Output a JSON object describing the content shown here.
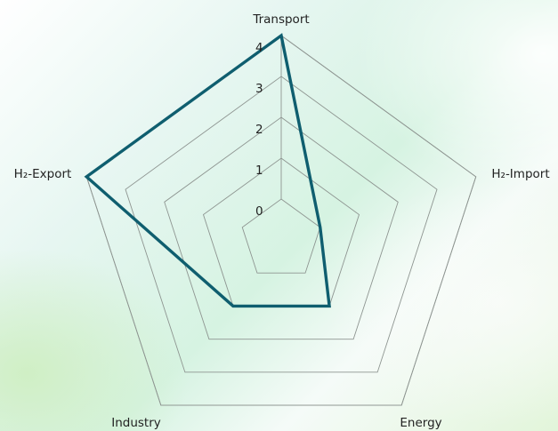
{
  "chart_data": {
    "type": "radar",
    "axes": [
      "Transport",
      "H₂-Import",
      "Energy",
      "Industry",
      "H₂-Export"
    ],
    "ticks": [
      0,
      1,
      2,
      3,
      4
    ],
    "range": [
      0,
      4
    ],
    "series": [
      {
        "values": [
          4,
          0,
          1,
          1,
          4
        ],
        "color": "#0f5e6f"
      }
    ],
    "grid": true,
    "legend": "none"
  }
}
